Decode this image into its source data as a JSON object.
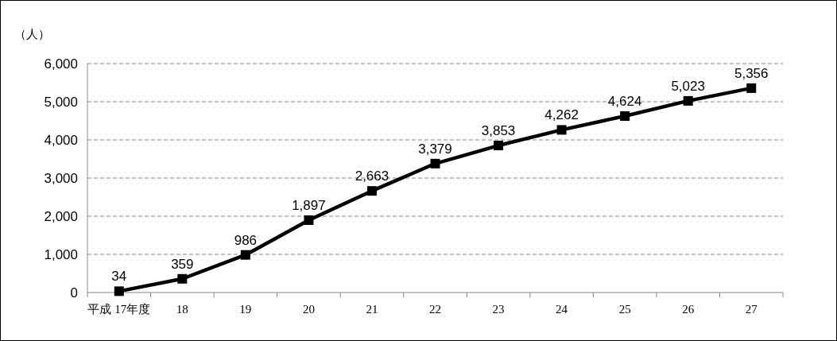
{
  "chart_data": {
    "type": "line",
    "ylabel": "（人）",
    "categories": [
      "平成 17年度",
      "18",
      "19",
      "20",
      "21",
      "22",
      "23",
      "24",
      "25",
      "26",
      "27"
    ],
    "series": [
      {
        "color": "#000000",
        "values": [
          34,
          359,
          986,
          1897,
          2663,
          3379,
          3853,
          4262,
          4624,
          5023,
          5356
        ],
        "value_labels": [
          "34",
          "359",
          "986",
          "1,897",
          "2,663",
          "3,379",
          "3,853",
          "4,262",
          "4,624",
          "5,023",
          "5,356"
        ]
      }
    ],
    "ylim": [
      0,
      6000
    ],
    "yticks": [
      0,
      {
        "value": 1000,
        "label": "1,000"
      },
      {
        "value": 2000,
        "label": "2,000"
      },
      {
        "value": 3000,
        "label": "3,000"
      },
      {
        "value": 4000,
        "label": "4,000"
      },
      {
        "value": 5000,
        "label": "5,000"
      },
      {
        "value": 6000,
        "label": "6,000"
      }
    ],
    "grid": "y",
    "marker": "square",
    "line_style": "solid"
  }
}
